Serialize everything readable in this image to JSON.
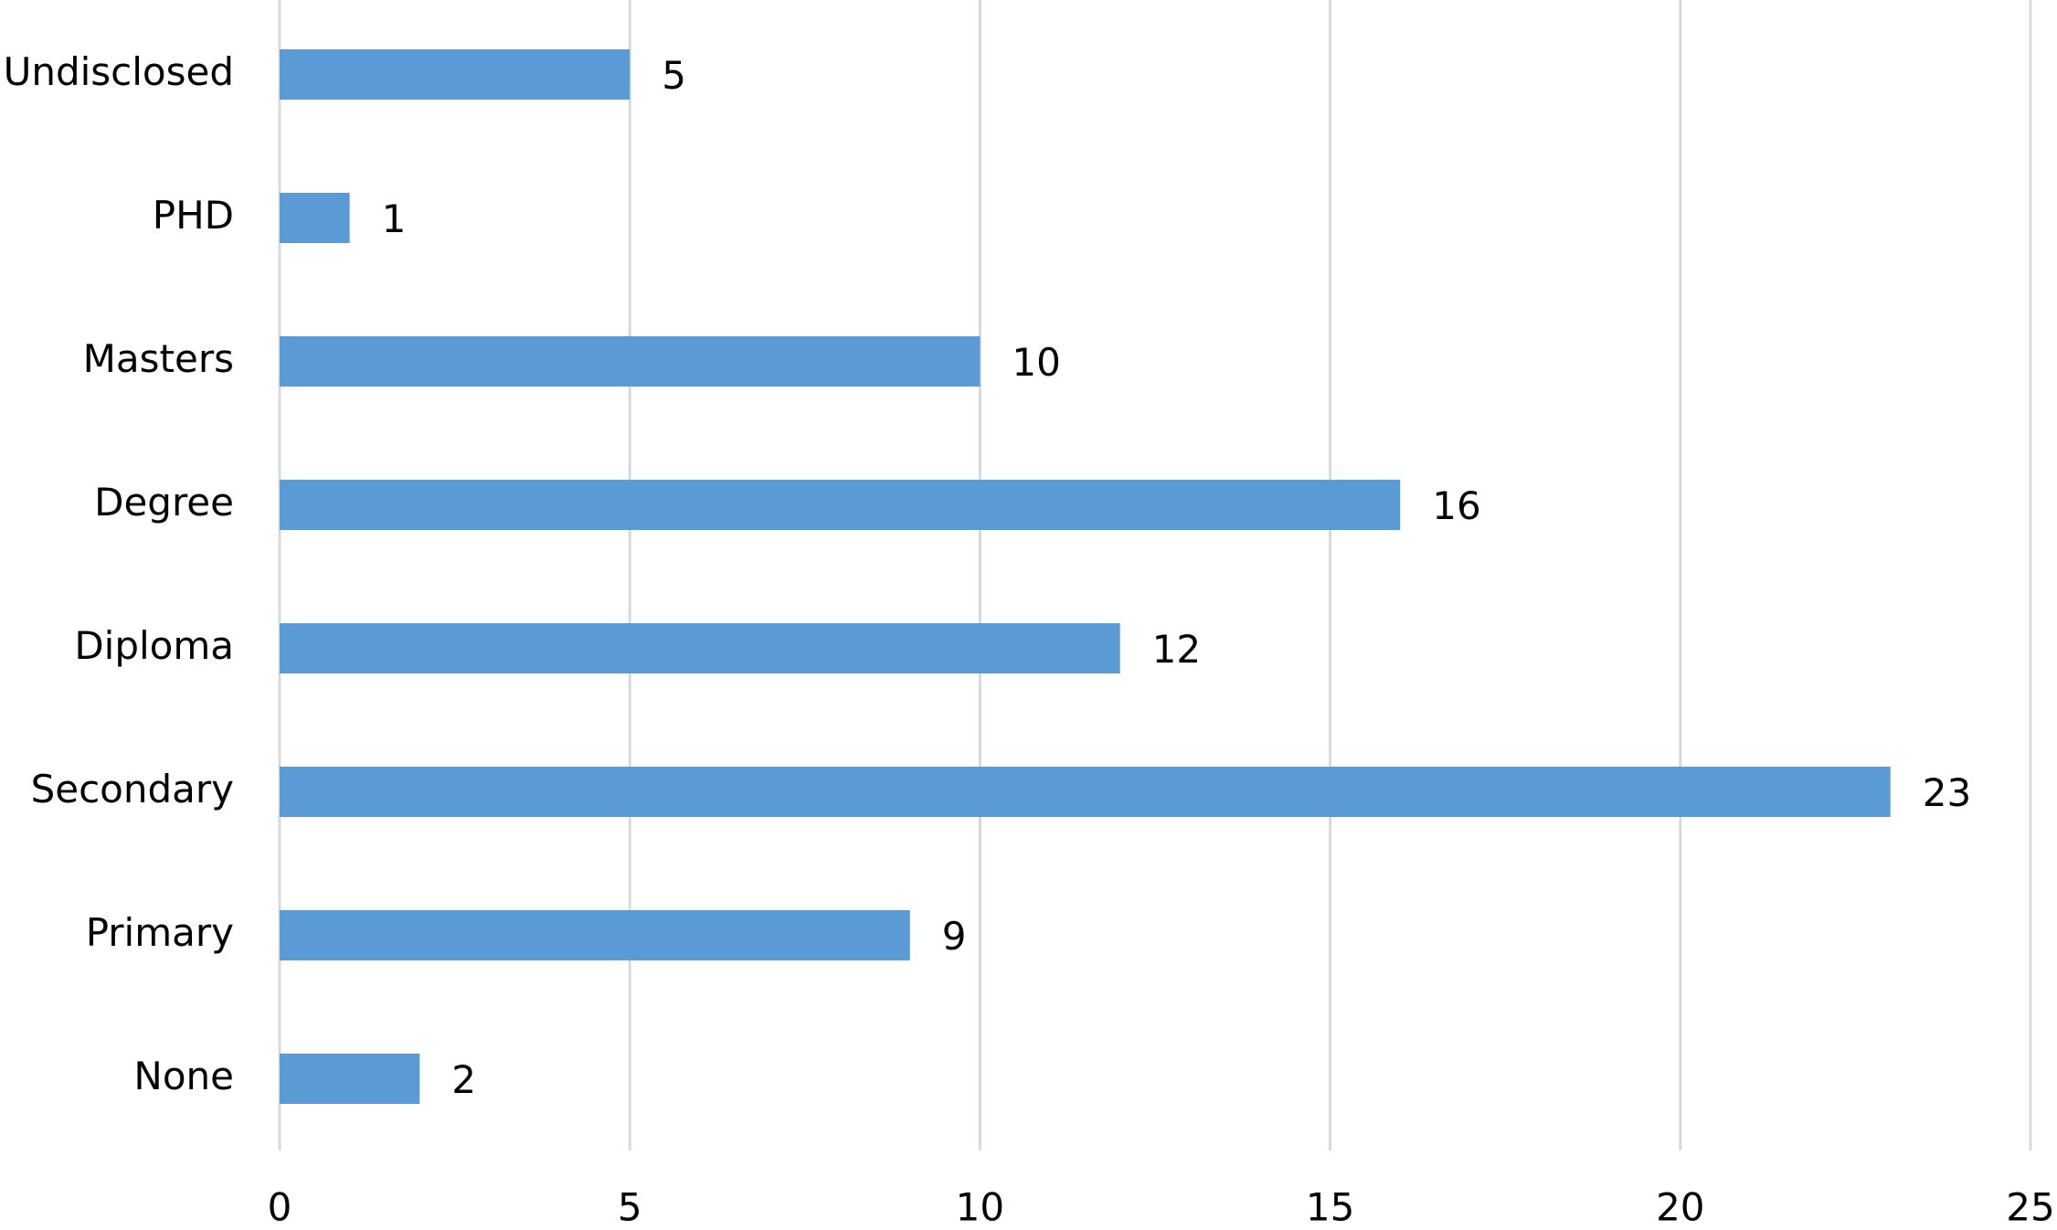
{
  "chart_data": {
    "type": "hbar",
    "categories": [
      "Undisclosed",
      "PHD",
      "Masters",
      "Degree",
      "Diploma",
      "Secondary",
      "Primary",
      "None"
    ],
    "values": [
      5,
      1,
      10,
      16,
      12,
      23,
      9,
      2
    ],
    "color": "#5b9bd5",
    "xlim": [
      0,
      25
    ],
    "xticks": [
      0,
      5,
      10,
      15,
      20,
      25
    ],
    "grid": true
  }
}
